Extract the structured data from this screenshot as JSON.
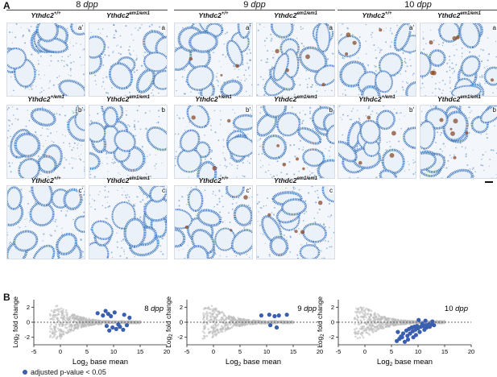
{
  "panels": {
    "a": "A",
    "b": "B"
  },
  "timepoints": [
    {
      "label": "8",
      "unit": "dpp"
    },
    {
      "label": "9",
      "unit": "dpp"
    },
    {
      "label": "10",
      "unit": "dpp"
    }
  ],
  "genotypes": {
    "wt": {
      "base": "Ythdc2",
      "sup": "+/+"
    },
    "ko": {
      "base": "Ythdc2",
      "sup": "em1/em1"
    },
    "het": {
      "base": "Ythdc2",
      "sup": "+/em1"
    }
  },
  "tile_rows": [
    {
      "left_corner": "a'",
      "right_corner": "a"
    },
    {
      "left_corner": "b'",
      "right_corner": "b"
    },
    {
      "left_corner": "c'",
      "right_corner": "c"
    }
  ],
  "ma_axes": {
    "xlabel_base": "Log",
    "xlabel_sub": "2",
    "xlabel_rest": " base mean",
    "ylabel_base": "Log",
    "ylabel_sub": "2",
    "ylabel_rest": " fold change",
    "xticks": [
      "-5",
      "0",
      "5",
      "10",
      "15",
      "20"
    ],
    "yticks": [
      "2",
      "0",
      "-2"
    ]
  },
  "legend": {
    "text": "adjusted p-value < 0.05",
    "color": "#3a5fb0"
  },
  "colors": {
    "tissue": "#4a7fc0",
    "stain": "#8b4a2a",
    "sig": "#3a5fb0",
    "nonsig": "#bdbdbd"
  },
  "chart_data": [
    {
      "type": "scatter",
      "title": "8 dpp",
      "xlabel": "Log2 base mean",
      "ylabel": "Log2 fold change",
      "xlim": [
        -5,
        20
      ],
      "ylim": [
        -3,
        3
      ],
      "series": [
        {
          "name": "adjusted p-value < 0.05",
          "points": [
            [
              7,
              1.2
            ],
            [
              8.5,
              1.5
            ],
            [
              9,
              1.1
            ],
            [
              10.2,
              1.3
            ],
            [
              8,
              0.9
            ],
            [
              9.5,
              0.8
            ],
            [
              12,
              1.0
            ],
            [
              13,
              0.6
            ],
            [
              9.8,
              -0.7
            ],
            [
              10.5,
              -0.9
            ],
            [
              11.2,
              -0.6
            ],
            [
              8.7,
              -0.5
            ],
            [
              11.8,
              -1.0
            ],
            [
              12.5,
              -0.4
            ],
            [
              9.2,
              -1.1
            ],
            [
              10.9,
              -0.3
            ]
          ]
        }
      ]
    },
    {
      "type": "scatter",
      "title": "9 dpp",
      "xlabel": "Log2 base mean",
      "ylabel": "Log2 fold change",
      "xlim": [
        -5,
        20
      ],
      "ylim": [
        -3,
        3
      ],
      "series": [
        {
          "name": "adjusted p-value < 0.05",
          "points": [
            [
              9,
              0.9
            ],
            [
              10.5,
              1.0
            ],
            [
              11.5,
              0.8
            ],
            [
              12.3,
              0.9
            ],
            [
              13.8,
              1.0
            ],
            [
              10.7,
              -0.4
            ],
            [
              11.9,
              -0.7
            ]
          ]
        }
      ]
    },
    {
      "type": "scatter",
      "title": "10 dpp",
      "xlabel": "Log2 base mean",
      "ylabel": "Log2 fold change",
      "xlim": [
        -5,
        20
      ],
      "ylim": [
        -3,
        3
      ],
      "series": [
        {
          "name": "adjusted p-value < 0.05",
          "points": [
            [
              6,
              -2.5
            ],
            [
              6.5,
              -2.2
            ],
            [
              7,
              -2.0
            ],
            [
              7.5,
              -2.6
            ],
            [
              8,
              -1.8
            ],
            [
              8.5,
              -1.5
            ],
            [
              9,
              -1.2
            ],
            [
              9.5,
              -1.0
            ],
            [
              10,
              -0.8
            ],
            [
              10.5,
              -0.6
            ],
            [
              11,
              -0.5
            ],
            [
              11.5,
              -0.4
            ],
            [
              12,
              -0.3
            ],
            [
              12.5,
              -0.3
            ],
            [
              7.2,
              -1.5
            ],
            [
              7.8,
              -1.1
            ],
            [
              8.3,
              -0.9
            ],
            [
              8.8,
              -0.7
            ],
            [
              9.3,
              -0.6
            ],
            [
              9.8,
              -0.5
            ],
            [
              6.8,
              -1.9
            ],
            [
              8.1,
              -2.3
            ],
            [
              9.6,
              -1.7
            ],
            [
              10.3,
              -1.3
            ],
            [
              11.2,
              -1.0
            ],
            [
              10.8,
              -0.2
            ],
            [
              11.6,
              -0.7
            ],
            [
              12.2,
              -0.6
            ],
            [
              13,
              -0.4
            ],
            [
              6.2,
              -1.3
            ],
            [
              9.1,
              -2.0
            ],
            [
              10.1,
              0.3
            ],
            [
              11.4,
              0.2
            ],
            [
              12.7,
              0.1
            ]
          ]
        }
      ]
    }
  ]
}
